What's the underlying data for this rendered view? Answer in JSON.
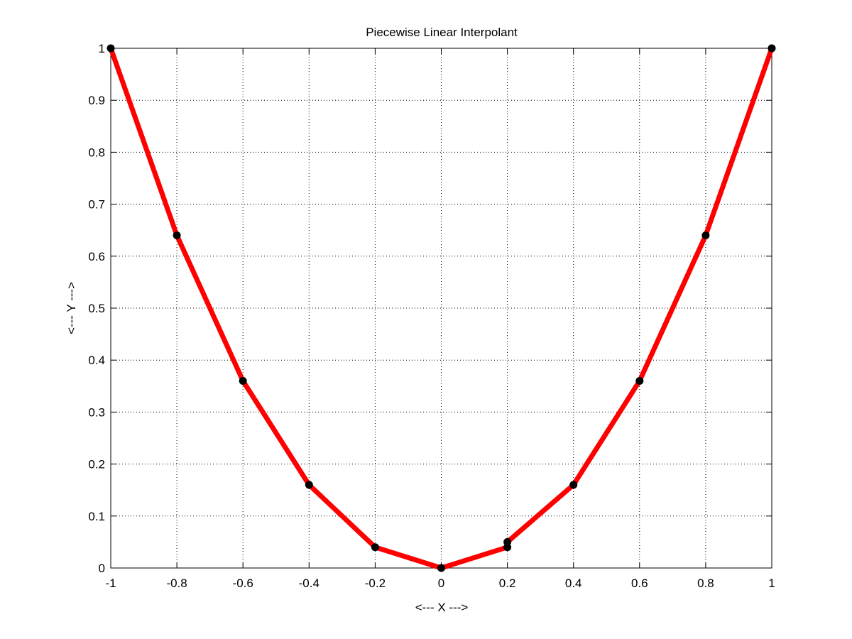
{
  "chart_data": {
    "type": "line",
    "title": "Piecewise Linear Interpolant",
    "xlabel": "<--- X --->",
    "ylabel": "<--- Y --->",
    "xlim": [
      -1,
      1
    ],
    "ylim": [
      0,
      1
    ],
    "grid": true,
    "grid_style": "dotted",
    "x_ticks": [
      -1,
      -0.8,
      -0.6,
      -0.4,
      -0.2,
      0,
      0.2,
      0.4,
      0.6,
      0.8,
      1
    ],
    "x_tick_labels": [
      "-1",
      "-0.8",
      "-0.6",
      "-0.4",
      "-0.2",
      "0",
      "0.2",
      "0.4",
      "0.6",
      "0.8",
      "1"
    ],
    "y_ticks": [
      0,
      0.1,
      0.2,
      0.3,
      0.4,
      0.5,
      0.6,
      0.7,
      0.8,
      0.9,
      1
    ],
    "y_tick_labels": [
      "0",
      "0.1",
      "0.2",
      "0.3",
      "0.4",
      "0.5",
      "0.6",
      "0.7",
      "0.8",
      "0.9",
      "1"
    ],
    "series": [
      {
        "style": "line",
        "color": "#ff0000",
        "x": [
          -1,
          -0.8,
          -0.6,
          -0.4,
          -0.2,
          0,
          0.2,
          0.2,
          0.4,
          0.6,
          0.8,
          1
        ],
        "y": [
          1,
          0.64,
          0.36,
          0.16,
          0.04,
          0,
          0.04,
          0.05,
          0.16,
          0.36,
          0.64,
          1
        ]
      },
      {
        "style": "markers",
        "color": "#000000",
        "x": [
          -1,
          -0.8,
          -0.6,
          -0.4,
          -0.2,
          0,
          0.2,
          0.2,
          0.4,
          0.6,
          0.8,
          1
        ],
        "y": [
          1,
          0.64,
          0.36,
          0.16,
          0.04,
          0,
          0.04,
          0.05,
          0.16,
          0.36,
          0.64,
          1
        ]
      }
    ]
  }
}
